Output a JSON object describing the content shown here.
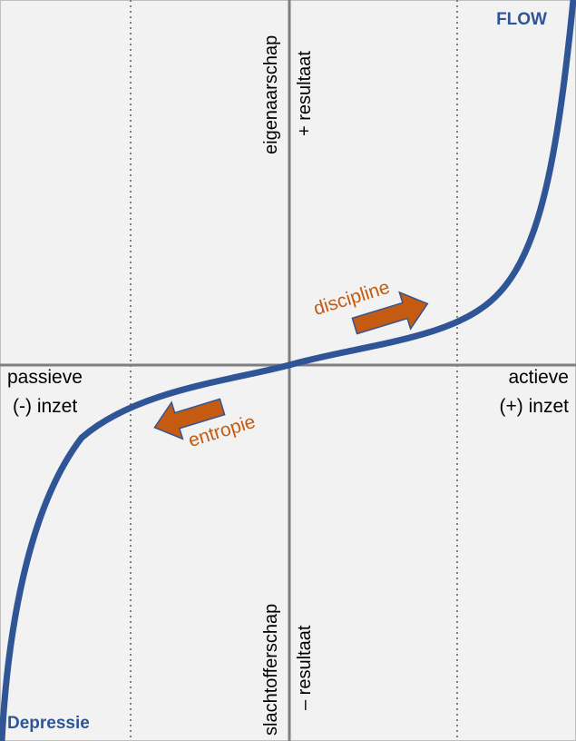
{
  "corners": {
    "top_right": "FLOW",
    "bottom_left": "Depressie"
  },
  "axis": {
    "left_line1": "passieve",
    "left_line2": "(-) inzet",
    "right_line1": "actieve",
    "right_line2": "(+) inzet",
    "top_line1": "eigenaarschap",
    "top_line2": "+ resultaat",
    "bottom_line1": "slachtofferschap",
    "bottom_line2": "– resultaat"
  },
  "arrows": {
    "up": "discipline",
    "down": "entropie"
  },
  "colors": {
    "background": "#f2f2f2",
    "curve": "#2f5597",
    "arrow_fill": "#c55a11",
    "arrow_stroke": "#2f5597",
    "axis": "#7f7f7f",
    "grid": "#7f7f7f",
    "label_accent": "#c55a11",
    "corner_label": "#2f5597"
  }
}
